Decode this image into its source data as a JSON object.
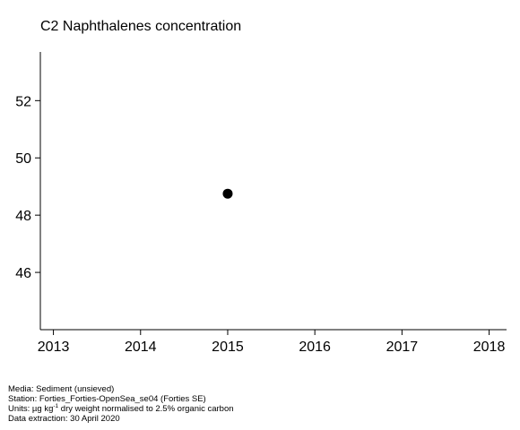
{
  "chart_data": {
    "type": "scatter",
    "title": "C2 Naphthalenes concentration",
    "xlabel": "",
    "ylabel": "",
    "xlim": [
      2012.85,
      2018.2
    ],
    "ylim": [
      44.0,
      53.7
    ],
    "x_ticks": [
      2013,
      2014,
      2015,
      2016,
      2017,
      2018
    ],
    "y_ticks": [
      46,
      48,
      50,
      52
    ],
    "grid": false,
    "points": [
      {
        "x": 2015,
        "y": 48.75
      }
    ],
    "marker_color": "#000000"
  },
  "footer": {
    "media": "Media: Sediment (unsieved)",
    "station": "Station: Forties_Forties-OpenSea_se04 (Forties SE)",
    "units_prefix": "Units:  µg kg",
    "units_sup": "-1",
    "units_suffix": " dry weight normalised to 2.5% organic carbon",
    "extraction": "Data extraction: 30 April 2020"
  }
}
